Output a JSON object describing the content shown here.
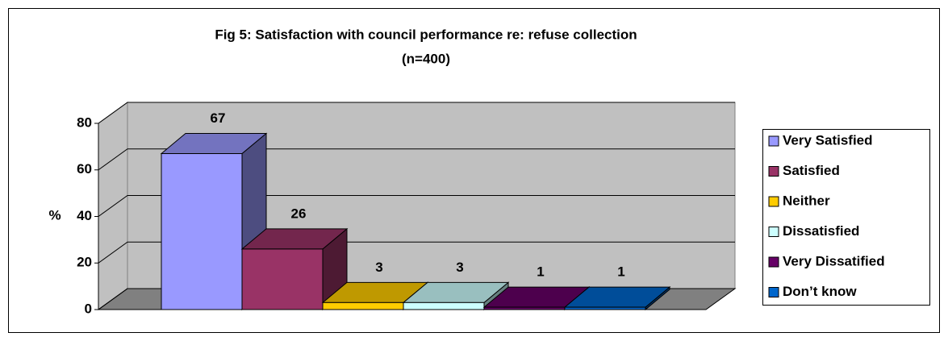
{
  "chart_data": {
    "type": "bar3d",
    "title": "Fig 5:   Satisfaction with council performance re: refuse collection",
    "subtitle": "(n=400)",
    "y_label": "%",
    "ylim": [
      0,
      80
    ],
    "yticks": [
      0,
      20,
      40,
      60,
      80
    ],
    "grid": true,
    "legend": "right",
    "series": [
      {
        "name": "Very Satisfied",
        "color": "#9999ff",
        "values": [
          67
        ]
      },
      {
        "name": "Satisfied",
        "color": "#993366",
        "values": [
          26
        ]
      },
      {
        "name": "Neither",
        "color": "#ffcc00",
        "values": [
          3
        ]
      },
      {
        "name": "Dissatisfied",
        "color": "#ccffff",
        "values": [
          3
        ]
      },
      {
        "name": "Very Dissatified",
        "color": "#660066",
        "values": [
          1
        ]
      },
      {
        "name": "Don’t know",
        "color": "#0066cc",
        "values": [
          1
        ]
      }
    ]
  }
}
